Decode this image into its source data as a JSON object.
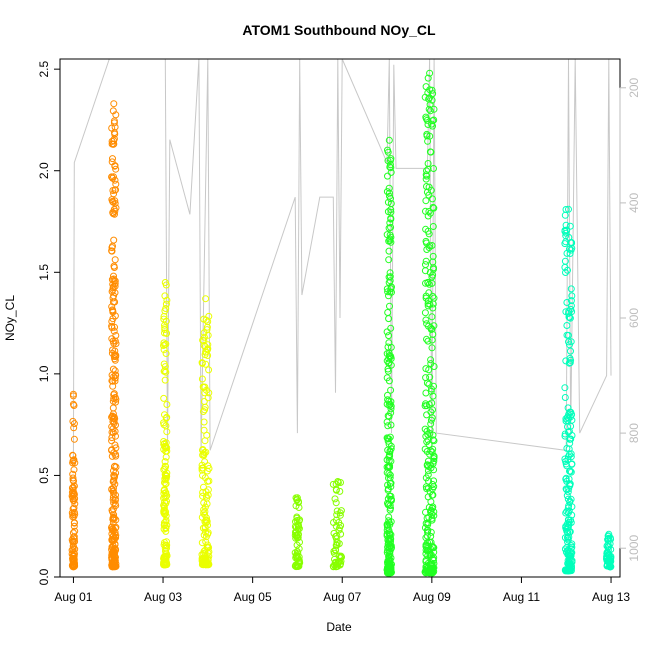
{
  "chart_data": {
    "type": "scatter",
    "title": "ATOM1 Southbound NOy_CL",
    "xlabel": "Date",
    "ylabel": "NOy_CL",
    "ylim": [
      0,
      2.55
    ],
    "xlim_days": [
      0.7,
      13.2
    ],
    "x_tick_labels": [
      "Aug 01",
      "Aug 03",
      "Aug 05",
      "Aug 07",
      "Aug 09",
      "Aug 11",
      "Aug 13"
    ],
    "y_ticks": [
      "0.0",
      "0.5",
      "1.0",
      "1.5",
      "2.0",
      "2.5"
    ],
    "right_axis": {
      "ticks": [
        "200",
        "400",
        "600",
        "800",
        "1000"
      ],
      "range": [
        150,
        1050
      ],
      "reversed": true,
      "color": "#bdbdbd"
    },
    "grid": false,
    "marker": "open-circle",
    "series": [
      {
        "color": "#ff8c00",
        "clusters": [
          {
            "x_center": 1.0,
            "x_spread": 0.03,
            "y_min": 0.05,
            "y_max": 0.9
          },
          {
            "x_center": 1.9,
            "x_spread": 0.05,
            "y_min": 0.05,
            "y_max": 2.33
          }
        ]
      },
      {
        "color": "#eaff00",
        "clusters": [
          {
            "x_center": 3.05,
            "x_spread": 0.04,
            "y_min": 0.06,
            "y_max": 1.45
          },
          {
            "x_center": 3.95,
            "x_spread": 0.08,
            "y_min": 0.06,
            "y_max": 1.37
          }
        ]
      },
      {
        "color": "#88ff00",
        "clusters": [
          {
            "x_center": 6.0,
            "x_spread": 0.05,
            "y_min": 0.05,
            "y_max": 0.39
          },
          {
            "x_center": 6.9,
            "x_spread": 0.1,
            "y_min": 0.05,
            "y_max": 0.47
          }
        ]
      },
      {
        "color": "#22ff22",
        "clusters": [
          {
            "x_center": 8.05,
            "x_spread": 0.05,
            "y_min": 0.02,
            "y_max": 2.15
          },
          {
            "x_center": 8.95,
            "x_spread": 0.1,
            "y_min": 0.02,
            "y_max": 2.48
          }
        ]
      },
      {
        "color": "#00ffbb",
        "clusters": [
          {
            "x_center": 12.05,
            "x_spread": 0.08,
            "y_min": 0.03,
            "y_max": 1.81
          },
          {
            "x_center": 12.95,
            "x_spread": 0.05,
            "y_min": 0.05,
            "y_max": 0.21
          }
        ]
      }
    ],
    "altitude_line": {
      "color": "#c8c8c8",
      "points_right_axis": [
        [
          1.0,
          850
        ],
        [
          1.02,
          330
        ],
        [
          1.8,
          150
        ],
        [
          3.05,
          150
        ],
        [
          3.1,
          830
        ],
        [
          3.15,
          290
        ],
        [
          3.6,
          420
        ],
        [
          3.8,
          150
        ],
        [
          3.85,
          830
        ],
        [
          4.0,
          150
        ],
        [
          4.05,
          830
        ],
        [
          5.95,
          390
        ],
        [
          6.0,
          800
        ],
        [
          6.05,
          150
        ],
        [
          6.1,
          560
        ],
        [
          6.5,
          390
        ],
        [
          6.8,
          390
        ],
        [
          6.85,
          730
        ],
        [
          6.9,
          150
        ],
        [
          6.95,
          600
        ],
        [
          7.0,
          150
        ],
        [
          8.0,
          330
        ],
        [
          8.05,
          150
        ],
        [
          8.1,
          800
        ],
        [
          8.15,
          160
        ],
        [
          8.2,
          340
        ],
        [
          8.9,
          340
        ],
        [
          8.95,
          150
        ],
        [
          9.0,
          830
        ],
        [
          9.05,
          150
        ],
        [
          9.1,
          800
        ],
        [
          12.0,
          830
        ],
        [
          12.05,
          150
        ],
        [
          12.1,
          800
        ],
        [
          12.2,
          150
        ],
        [
          12.3,
          800
        ],
        [
          12.9,
          700
        ],
        [
          12.95,
          150
        ],
        [
          13.0,
          700
        ]
      ]
    }
  }
}
